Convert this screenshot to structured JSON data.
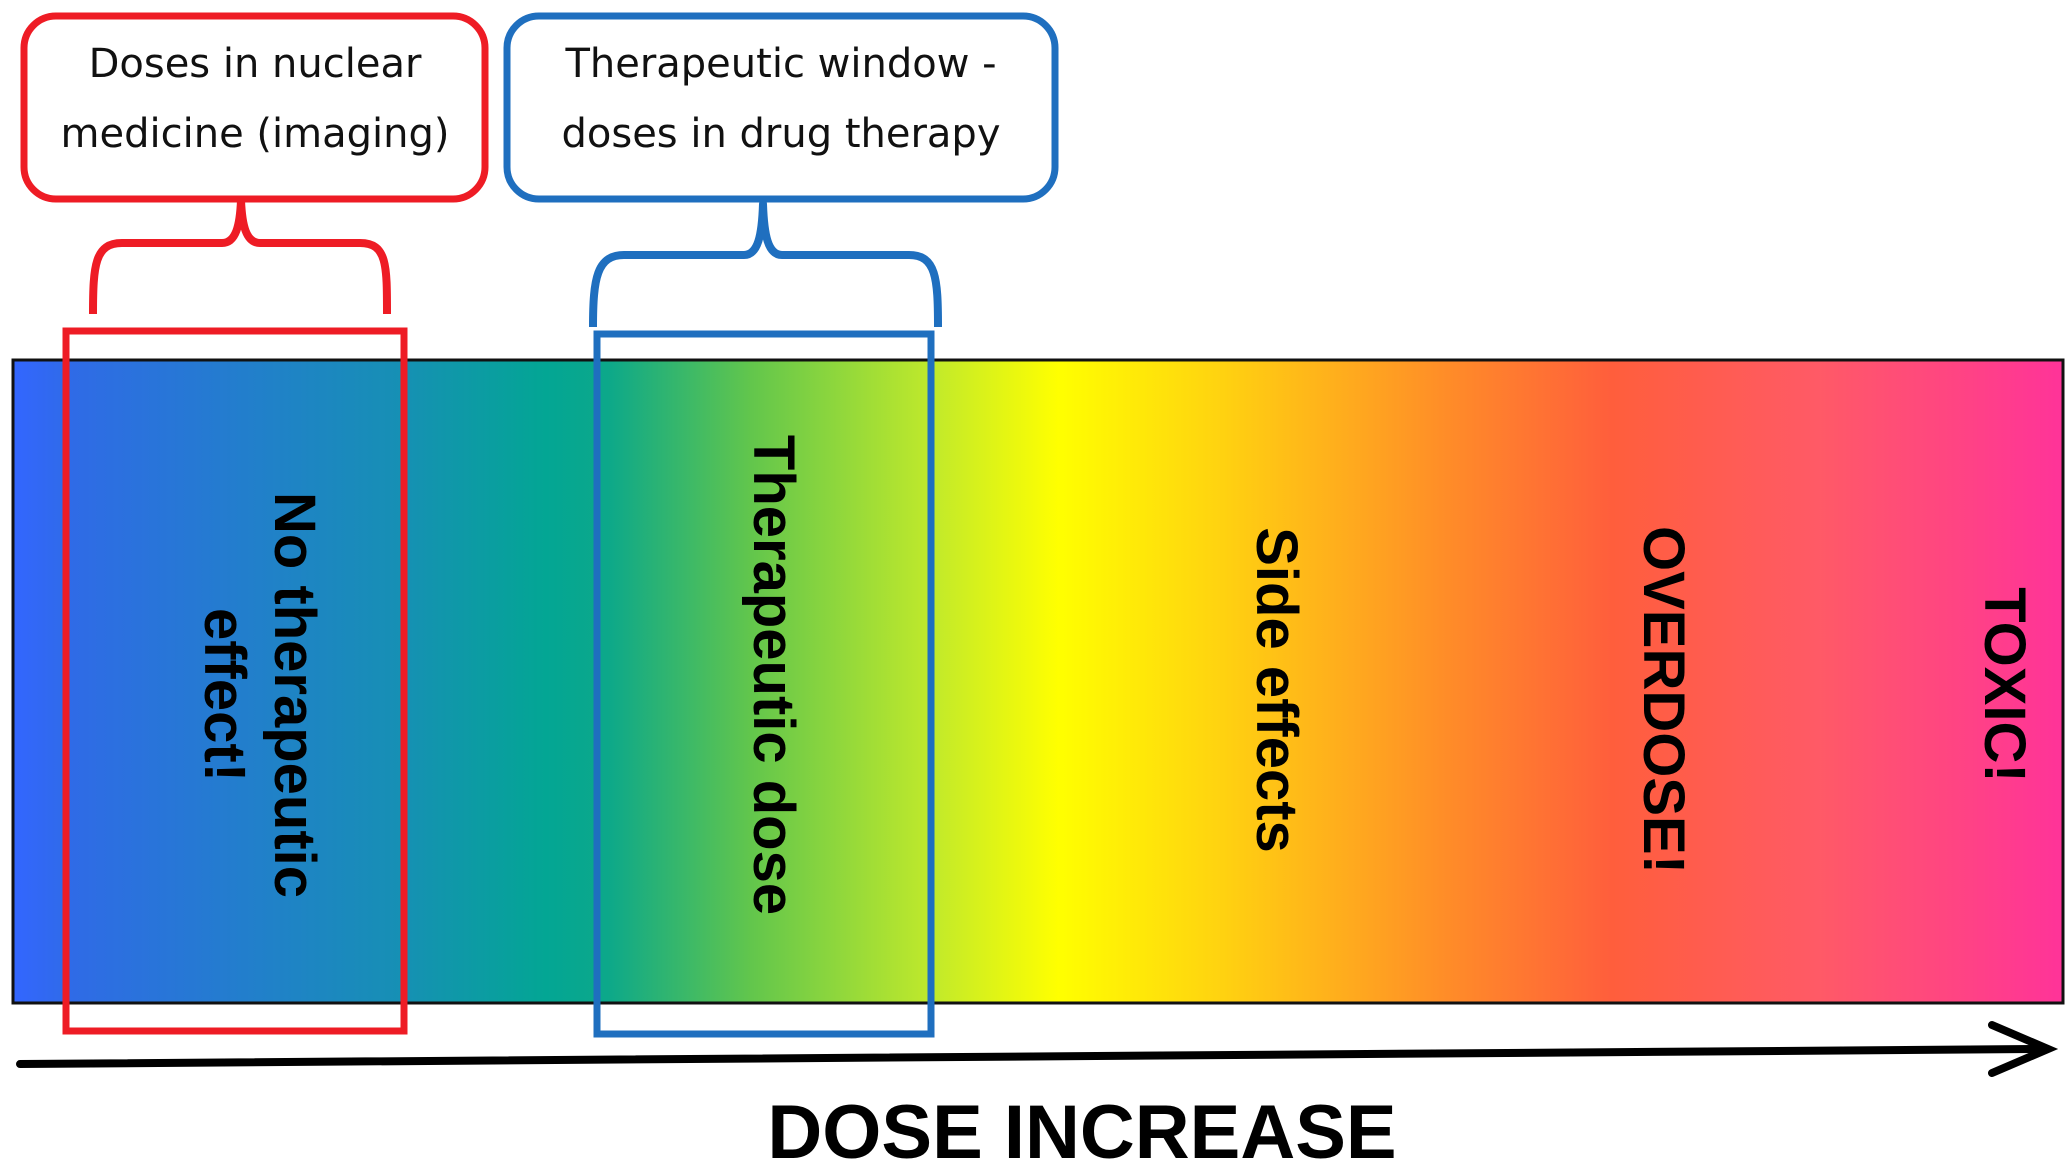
{
  "callouts": {
    "imaging": {
      "line1": "Doses in nuclear",
      "line2": "medicine (imaging)",
      "color": "#ee1c25"
    },
    "therapy": {
      "line1": "Therapeutic window -",
      "line2": "doses in drug therapy",
      "color": "#1f6fbf"
    }
  },
  "zones": {
    "no_effect": {
      "line1": "No therapeutic",
      "line2": "effect!"
    },
    "therapeutic": {
      "label": "Therapeutic dose"
    },
    "side_effects": {
      "label": "Side effects"
    },
    "overdose": {
      "label": "OVERDOSE!"
    },
    "toxic": {
      "label": "TOXIC!"
    }
  },
  "axis": {
    "label": "DOSE INCREASE"
  },
  "colors": {
    "gradient": [
      "#3366ff",
      "#12a0a8",
      "#00a88a",
      "#5bc44e",
      "#b8e630",
      "#ffff00",
      "#ffc21a",
      "#ff8c2a",
      "#ff5a3c",
      "#ff5e6a",
      "#ff3399"
    ]
  }
}
